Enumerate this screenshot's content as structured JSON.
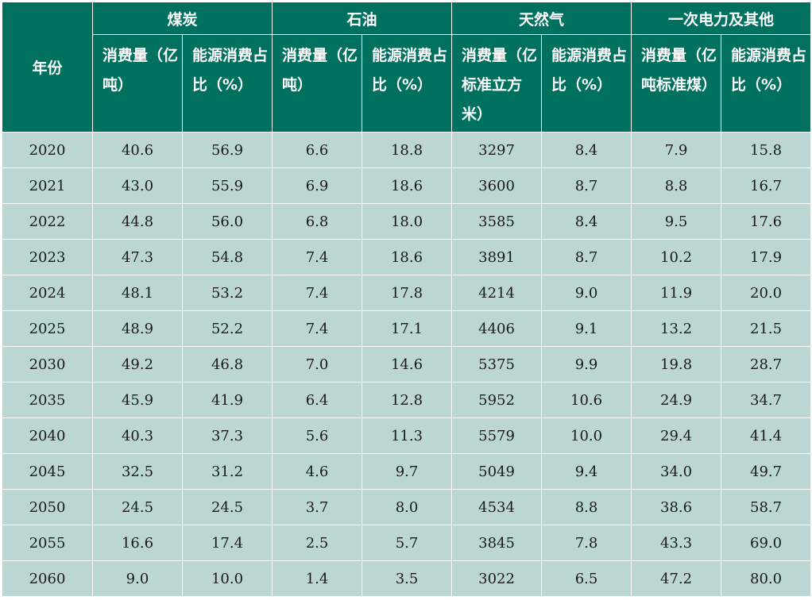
{
  "header": {
    "year_label": "年份",
    "groups": [
      "煤炭",
      "石油",
      "天然气",
      "一次电力及其他"
    ],
    "subheaders": [
      "消费量（亿吨）",
      "能源消费占比（%）",
      "消费量（亿吨）",
      "能源消费占比（%）",
      "消费量（亿标准立方米）",
      "能源消费占比（%）",
      "消费量（亿吨标准煤）",
      "能源消费占比（%）"
    ]
  },
  "rows": [
    [
      "2020",
      "40.6",
      "56.9",
      "6.6",
      "18.8",
      "3297",
      "8.4",
      "7.9",
      "15.8"
    ],
    [
      "2021",
      "43.0",
      "55.9",
      "6.9",
      "18.6",
      "3600",
      "8.7",
      "8.8",
      "16.7"
    ],
    [
      "2022",
      "44.8",
      "56.0",
      "6.8",
      "18.0",
      "3585",
      "8.4",
      "9.5",
      "17.6"
    ],
    [
      "2023",
      "47.3",
      "54.8",
      "7.4",
      "18.6",
      "3891",
      "8.7",
      "10.2",
      "17.9"
    ],
    [
      "2024",
      "48.1",
      "53.2",
      "7.4",
      "17.8",
      "4214",
      "9.0",
      "11.9",
      "20.0"
    ],
    [
      "2025",
      "48.9",
      "52.2",
      "7.4",
      "17.1",
      "4406",
      "9.1",
      "13.2",
      "21.5"
    ],
    [
      "2030",
      "49.2",
      "46.8",
      "7.0",
      "14.6",
      "5375",
      "9.9",
      "19.8",
      "28.7"
    ],
    [
      "2035",
      "45.9",
      "41.9",
      "6.4",
      "12.8",
      "5952",
      "10.6",
      "24.9",
      "34.7"
    ],
    [
      "2040",
      "40.3",
      "37.3",
      "5.6",
      "11.3",
      "5579",
      "10.0",
      "29.4",
      "41.4"
    ],
    [
      "2045",
      "32.5",
      "31.2",
      "4.6",
      "9.7",
      "5049",
      "9.4",
      "34.0",
      "49.7"
    ],
    [
      "2050",
      "24.5",
      "24.5",
      "3.7",
      "8.0",
      "4534",
      "8.8",
      "38.6",
      "58.7"
    ],
    [
      "2055",
      "16.6",
      "17.4",
      "2.5",
      "5.7",
      "3845",
      "7.8",
      "43.3",
      "69.0"
    ],
    [
      "2060",
      "9.0",
      "10.0",
      "1.4",
      "3.5",
      "3022",
      "6.5",
      "47.2",
      "80.0"
    ]
  ]
}
